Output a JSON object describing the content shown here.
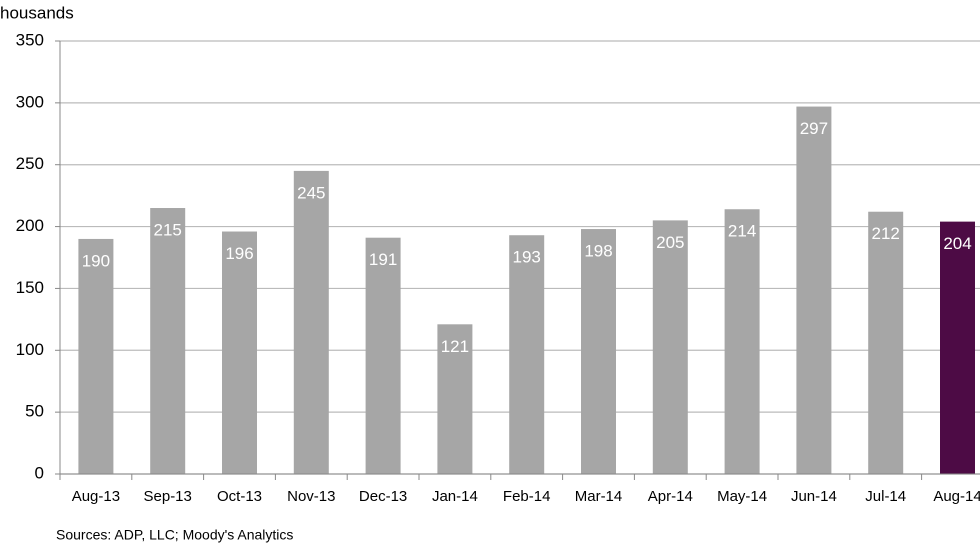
{
  "chart_data": {
    "type": "bar",
    "y_label": "housands",
    "categories": [
      "Aug-13",
      "Sep-13",
      "Oct-13",
      "Nov-13",
      "Dec-13",
      "Jan-14",
      "Feb-14",
      "Mar-14",
      "Apr-14",
      "May-14",
      "Jun-14",
      "Jul-14",
      "Aug-14"
    ],
    "values": [
      190,
      215,
      196,
      245,
      191,
      121,
      193,
      198,
      205,
      214,
      297,
      212,
      204
    ],
    "colors": [
      "#a6a6a6",
      "#a6a6a6",
      "#a6a6a6",
      "#a6a6a6",
      "#a6a6a6",
      "#a6a6a6",
      "#a6a6a6",
      "#a6a6a6",
      "#a6a6a6",
      "#a6a6a6",
      "#a6a6a6",
      "#a6a6a6",
      "#4d0b45"
    ],
    "ylim": [
      0,
      350
    ],
    "yticks": [
      0,
      50,
      100,
      150,
      200,
      250,
      300,
      350
    ],
    "grid": true,
    "source": "Sources: ADP, LLC; Moody's Analytics"
  }
}
